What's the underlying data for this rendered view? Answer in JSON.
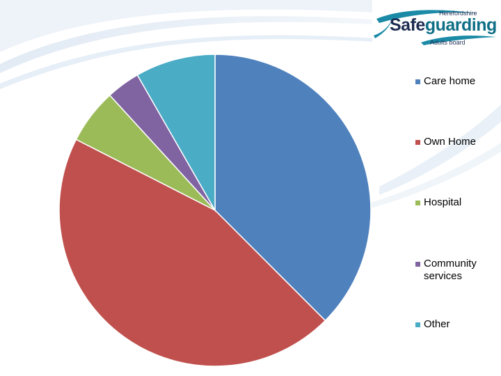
{
  "logo": {
    "top_text": "Herefordshire",
    "main_part1": "Safe",
    "main_part2": "guarding",
    "bottom_text": "Adults board"
  },
  "chart_data": {
    "type": "pie",
    "title": "",
    "slices": [
      {
        "label": "Care home",
        "value": 37.5,
        "color": "#4f81bd"
      },
      {
        "label": "Own Home",
        "value": 45.0,
        "color": "#c0504d"
      },
      {
        "label": "Hospital",
        "value": 5.7,
        "color": "#9bbb59"
      },
      {
        "label": "Community services",
        "value": 3.5,
        "color": "#8064a2"
      },
      {
        "label": "Other",
        "value": 8.3,
        "color": "#4bacc6"
      }
    ],
    "legend_position": "right",
    "start_angle": "12 o'clock, clockwise"
  }
}
